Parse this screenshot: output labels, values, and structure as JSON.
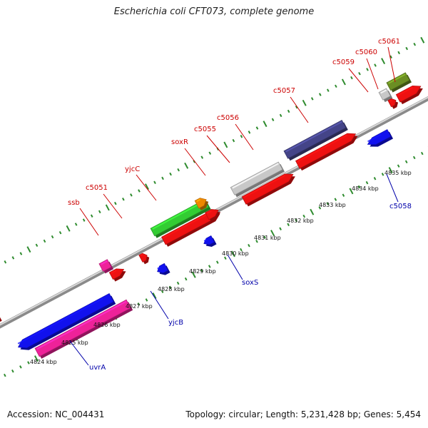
{
  "title": "Escherichia coli CFT073, complete genome",
  "footer": {
    "accession": "Accession: NC_004431",
    "stats": "Topology: circular; Length: 5,231,428 bp; Genes: 5,454"
  },
  "colors": {
    "backbone": "#999999",
    "tick": "#2e8b2e",
    "label_top": "#cc0000",
    "label_bottom": "#0000aa",
    "red": "#ee1111",
    "blue": "#1111ee",
    "pink": "#ee2299",
    "green": "#33cc33",
    "gray": "#c8c8c8",
    "navy": "#444488",
    "olive": "#6b8e23",
    "orange": "#ee8800",
    "magenta": "#ee2299"
  },
  "scale_labels": [
    "4824 kbp",
    "4825 kbp",
    "4826 kbp",
    "4827 kbp",
    "4828 kbp",
    "4829 kbp",
    "4830 kbp",
    "4831 kbp",
    "4832 kbp",
    "4833 kbp",
    "4834 kbp",
    "4835 kbp"
  ],
  "gene_labels_top": [
    "ssb",
    "c5051",
    "yjcC",
    "soxR",
    "c5055",
    "c5056",
    "c5057",
    "c5059",
    "c5060",
    "c5061"
  ],
  "gene_labels_bottom": [
    "uvrA",
    "yjcB",
    "soxS",
    "c5058"
  ]
}
